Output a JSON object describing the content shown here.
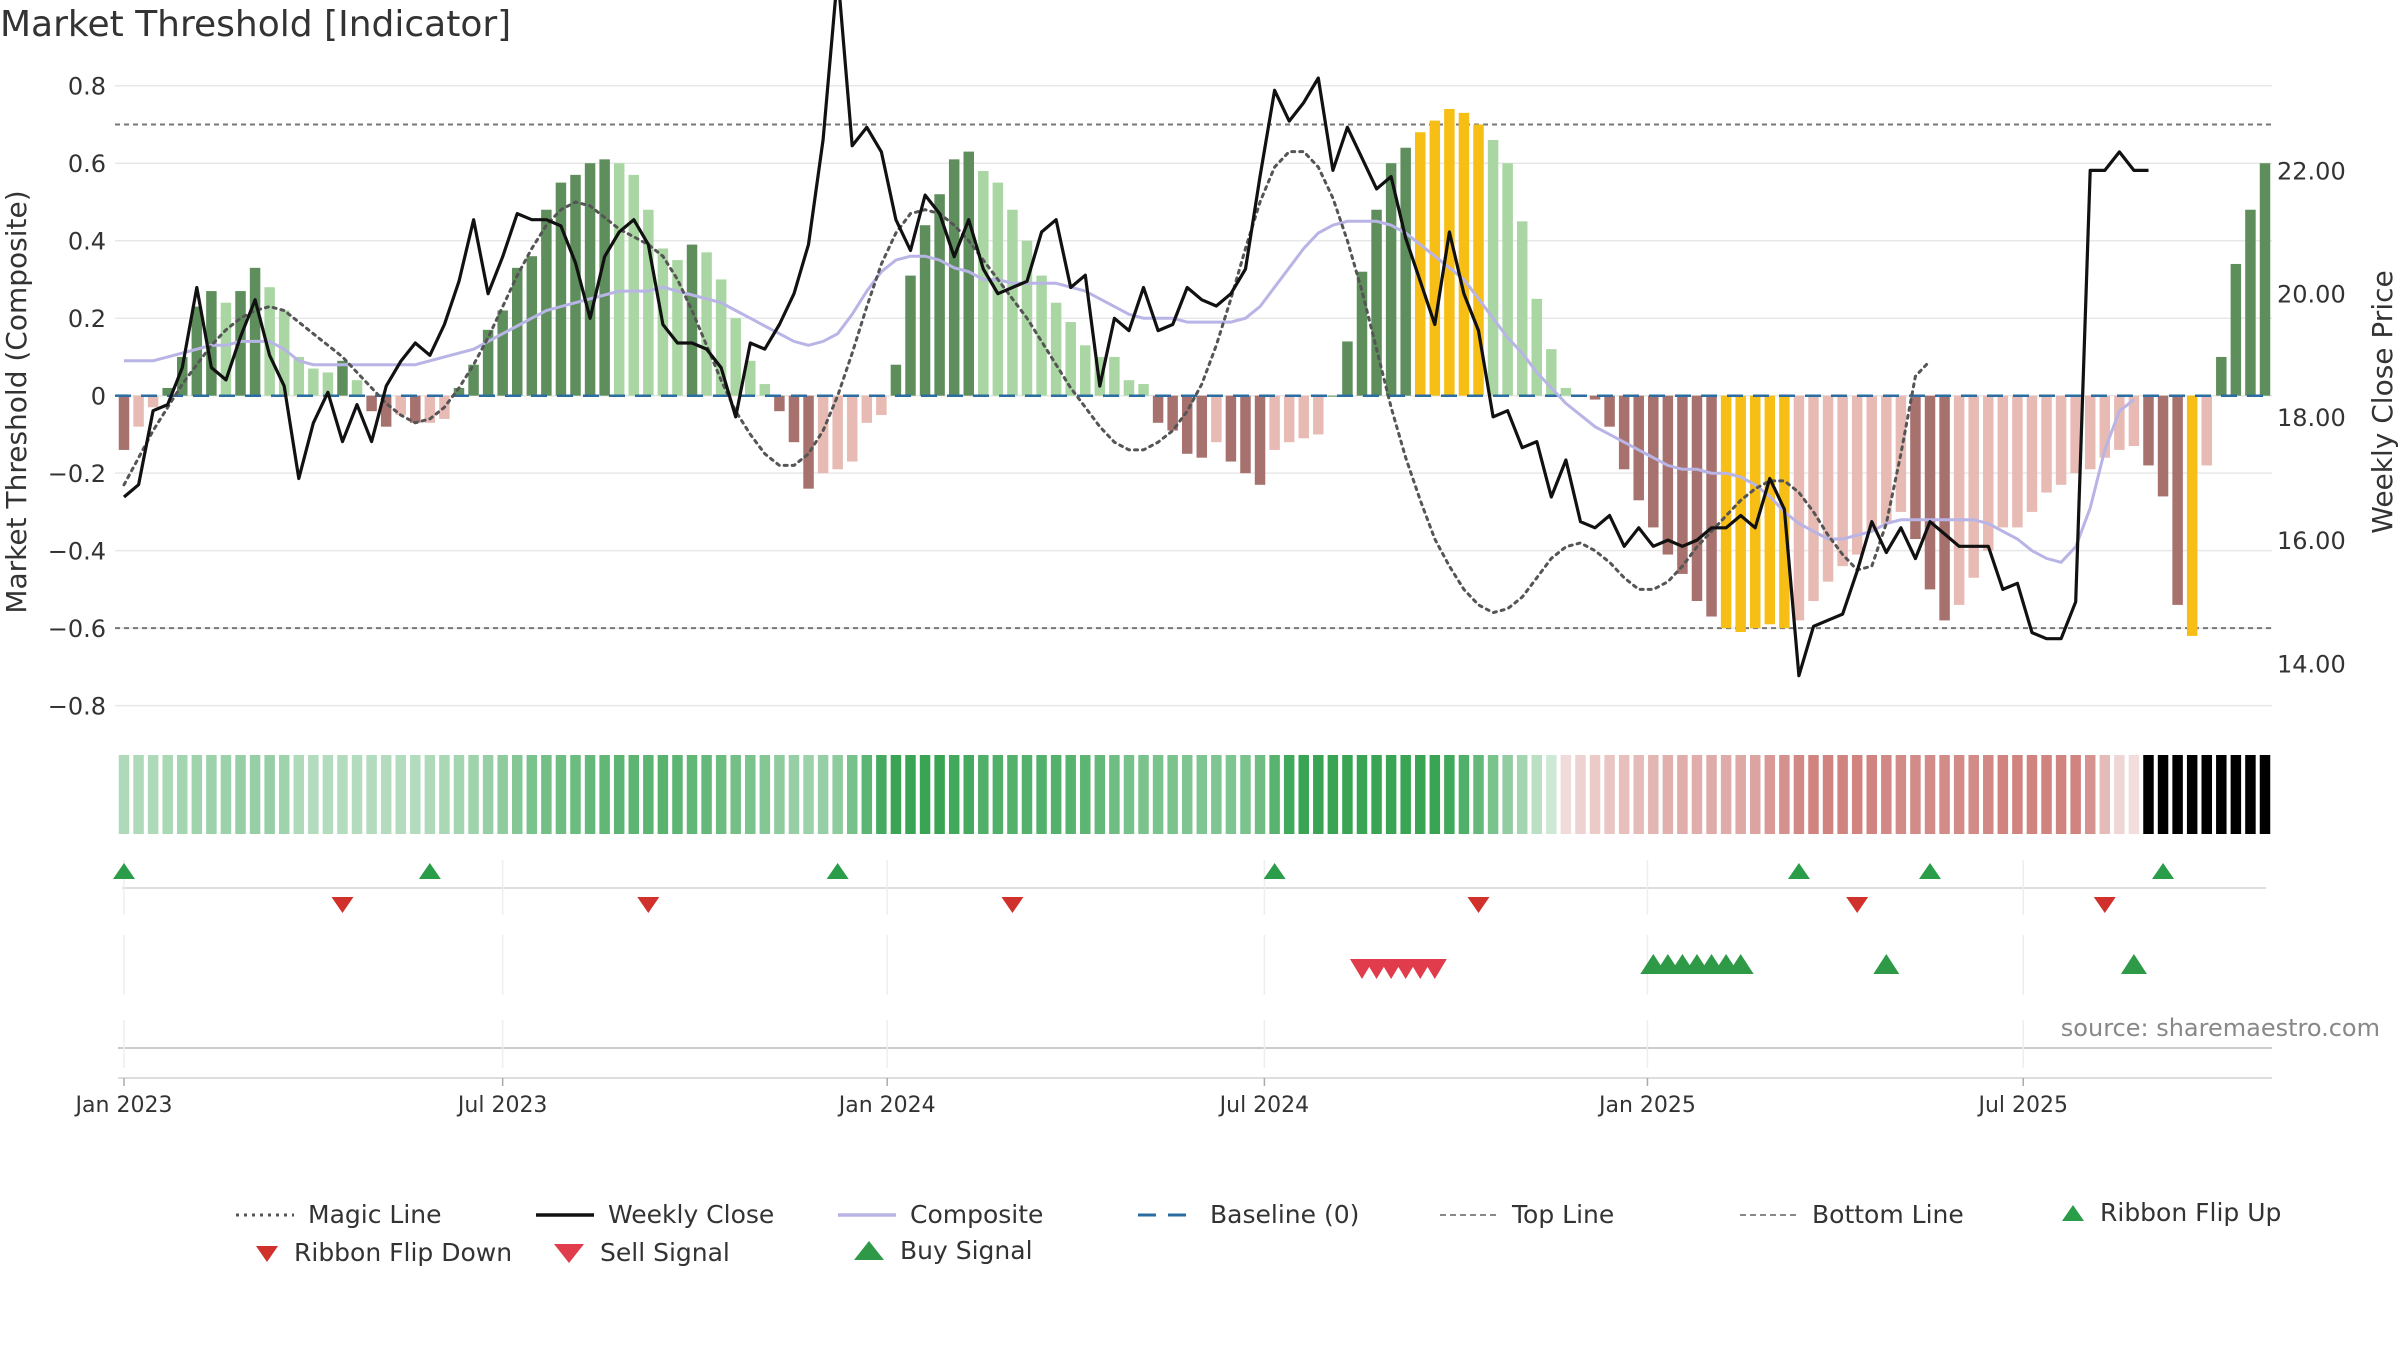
{
  "title": "Market Threshold [Indicator]",
  "source": "source: sharemaestro.com",
  "chart_data": {
    "type": "bar+line",
    "title": "Market Threshold [Indicator]",
    "ylabel": "Market Threshold (Composite)",
    "y2label": "Weekly Close Price",
    "ylim": [
      -0.85,
      0.82
    ],
    "y2lim": [
      13.0,
      23.5
    ],
    "yticks": [
      -0.8,
      -0.6,
      -0.4,
      -0.2,
      0,
      0.2,
      0.4,
      0.6,
      0.8
    ],
    "ytick_labels": [
      "−0.8",
      "−0.6",
      "−0.4",
      "−0.2",
      "0",
      "0.2",
      "0.4",
      "0.6",
      "0.8"
    ],
    "y2ticks": [
      14,
      16,
      18,
      20,
      22
    ],
    "y2tick_labels": [
      "14.00",
      "16.00",
      "18.00",
      "20.00",
      "22.00"
    ],
    "xticks": [
      {
        "label": "Jan 2023",
        "week": 0
      },
      {
        "label": "Jul 2023",
        "week": 26
      },
      {
        "label": "Jan 2024",
        "week": 52.4
      },
      {
        "label": "Jul 2024",
        "week": 78.3
      },
      {
        "label": "Jan 2025",
        "week": 104.6
      },
      {
        "label": "Jul 2025",
        "week": 130.4
      }
    ],
    "top_line": 0.7,
    "bottom_line": -0.6,
    "baseline": 0,
    "series": [
      {
        "name": "Magic Line",
        "axis": "left",
        "style": "dotted",
        "color": "#555555",
        "values": [
          -0.23,
          -0.16,
          -0.09,
          -0.03,
          0.03,
          0.08,
          0.13,
          0.17,
          0.2,
          0.22,
          0.23,
          0.22,
          0.19,
          0.16,
          0.13,
          0.1,
          0.06,
          0.02,
          -0.02,
          -0.05,
          -0.07,
          -0.06,
          -0.03,
          0.02,
          0.08,
          0.15,
          0.23,
          0.31,
          0.38,
          0.44,
          0.48,
          0.5,
          0.49,
          0.46,
          0.43,
          0.41,
          0.39,
          0.36,
          0.3,
          0.22,
          0.13,
          0.04,
          -0.04,
          -0.1,
          -0.15,
          -0.18,
          -0.18,
          -0.15,
          -0.09,
          0.0,
          0.11,
          0.23,
          0.34,
          0.42,
          0.47,
          0.48,
          0.47,
          0.44,
          0.4,
          0.35,
          0.3,
          0.25,
          0.2,
          0.14,
          0.08,
          0.02,
          -0.03,
          -0.08,
          -0.12,
          -0.14,
          -0.14,
          -0.12,
          -0.09,
          -0.04,
          0.03,
          0.13,
          0.25,
          0.38,
          0.5,
          0.59,
          0.63,
          0.63,
          0.59,
          0.51,
          0.4,
          0.27,
          0.12,
          -0.03,
          -0.16,
          -0.27,
          -0.37,
          -0.44,
          -0.5,
          -0.54,
          -0.56,
          -0.55,
          -0.52,
          -0.47,
          -0.42,
          -0.39,
          -0.38,
          -0.4,
          -0.43,
          -0.47,
          -0.5,
          -0.5,
          -0.48,
          -0.44,
          -0.39,
          -0.35,
          -0.31,
          -0.27,
          -0.24,
          -0.22,
          -0.22,
          -0.25,
          -0.3,
          -0.36,
          -0.41,
          -0.45,
          -0.44,
          -0.33,
          -0.15,
          0.05,
          0.09
        ]
      },
      {
        "name": "Weekly Close",
        "axis": "right",
        "style": "solid",
        "color": "#111111",
        "values": [
          16.7,
          16.9,
          18.1,
          18.2,
          18.8,
          20.1,
          18.8,
          18.6,
          19.3,
          19.9,
          19.0,
          18.5,
          17.0,
          17.9,
          18.4,
          17.6,
          18.2,
          17.6,
          18.5,
          18.9,
          19.2,
          19.0,
          19.5,
          20.2,
          21.2,
          20.0,
          20.6,
          21.3,
          21.2,
          21.2,
          21.1,
          20.5,
          19.6,
          20.6,
          21.0,
          21.2,
          20.8,
          19.5,
          19.2,
          19.2,
          19.1,
          18.8,
          18.0,
          19.2,
          19.1,
          19.5,
          20.0,
          20.8,
          22.5,
          25.2,
          22.4,
          22.7,
          22.3,
          21.2,
          20.7,
          21.6,
          21.3,
          20.6,
          21.2,
          20.4,
          20.0,
          20.1,
          20.2,
          21.0,
          21.2,
          20.1,
          20.3,
          18.5,
          19.6,
          19.4,
          20.1,
          19.4,
          19.5,
          20.1,
          19.9,
          19.8,
          20.0,
          20.4,
          21.9,
          23.3,
          22.8,
          23.1,
          23.5,
          22.0,
          22.7,
          22.2,
          21.7,
          21.9,
          20.9,
          20.2,
          19.5,
          21.0,
          20.0,
          19.4,
          18.0,
          18.1,
          17.5,
          17.6,
          16.7,
          17.3,
          16.3,
          16.2,
          16.4,
          15.9,
          16.2,
          15.9,
          16.0,
          15.9,
          16.0,
          16.2,
          16.2,
          16.4,
          16.2,
          17.0,
          16.5,
          13.8,
          14.6,
          14.7,
          14.8,
          15.5,
          16.3,
          15.8,
          16.2,
          15.7,
          16.3,
          16.1,
          15.9,
          15.9,
          15.9,
          15.2,
          15.3,
          14.5,
          14.4,
          14.4,
          15.0,
          22.0,
          22.0,
          22.3,
          22.0,
          22.0
        ]
      },
      {
        "name": "Composite",
        "axis": "left",
        "style": "solid",
        "color": "#b8b4e6",
        "values": [
          0.09,
          0.09,
          0.09,
          0.1,
          0.11,
          0.12,
          0.13,
          0.13,
          0.14,
          0.14,
          0.14,
          0.12,
          0.09,
          0.08,
          0.08,
          0.08,
          0.08,
          0.08,
          0.08,
          0.08,
          0.08,
          0.09,
          0.1,
          0.11,
          0.12,
          0.14,
          0.16,
          0.18,
          0.2,
          0.22,
          0.23,
          0.24,
          0.25,
          0.26,
          0.27,
          0.27,
          0.27,
          0.28,
          0.27,
          0.26,
          0.25,
          0.24,
          0.22,
          0.2,
          0.18,
          0.16,
          0.14,
          0.13,
          0.14,
          0.16,
          0.21,
          0.27,
          0.32,
          0.35,
          0.36,
          0.36,
          0.35,
          0.33,
          0.32,
          0.3,
          0.3,
          0.29,
          0.29,
          0.29,
          0.29,
          0.28,
          0.27,
          0.25,
          0.23,
          0.21,
          0.2,
          0.2,
          0.2,
          0.19,
          0.19,
          0.19,
          0.19,
          0.2,
          0.23,
          0.28,
          0.33,
          0.38,
          0.42,
          0.44,
          0.45,
          0.45,
          0.45,
          0.44,
          0.42,
          0.39,
          0.36,
          0.33,
          0.3,
          0.25,
          0.2,
          0.15,
          0.11,
          0.06,
          0.02,
          -0.02,
          -0.05,
          -0.08,
          -0.1,
          -0.12,
          -0.14,
          -0.16,
          -0.18,
          -0.19,
          -0.19,
          -0.2,
          -0.2,
          -0.21,
          -0.23,
          -0.26,
          -0.3,
          -0.33,
          -0.35,
          -0.37,
          -0.37,
          -0.36,
          -0.35,
          -0.33,
          -0.32,
          -0.32,
          -0.32,
          -0.32,
          -0.32,
          -0.32,
          -0.33,
          -0.35,
          -0.37,
          -0.4,
          -0.42,
          -0.43,
          -0.39,
          -0.29,
          -0.14,
          -0.04,
          -0.01
        ]
      },
      {
        "name": "Composite Bars",
        "axis": "left",
        "style": "bar",
        "values": [
          -0.14,
          -0.08,
          -0.03,
          0.02,
          0.1,
          0.23,
          0.27,
          0.24,
          0.27,
          0.33,
          0.28,
          0.22,
          0.1,
          0.07,
          0.06,
          0.09,
          0.04,
          -0.04,
          -0.08,
          -0.05,
          -0.07,
          -0.07,
          -0.06,
          0.02,
          0.08,
          0.17,
          0.22,
          0.33,
          0.36,
          0.48,
          0.55,
          0.57,
          0.6,
          0.61,
          0.6,
          0.57,
          0.48,
          0.38,
          0.35,
          0.39,
          0.37,
          0.3,
          0.2,
          0.09,
          0.03,
          -0.04,
          -0.12,
          -0.24,
          -0.2,
          -0.19,
          -0.17,
          -0.07,
          -0.05,
          0.08,
          0.31,
          0.44,
          0.52,
          0.61,
          0.63,
          0.58,
          0.55,
          0.48,
          0.4,
          0.31,
          0.24,
          0.19,
          0.13,
          0.1,
          0.1,
          0.04,
          0.03,
          -0.07,
          -0.09,
          -0.15,
          -0.16,
          -0.12,
          -0.17,
          -0.2,
          -0.23,
          -0.14,
          -0.12,
          -0.11,
          -0.1,
          0.0,
          0.14,
          0.32,
          0.48,
          0.6,
          0.64,
          0.68,
          0.71,
          0.74,
          0.73,
          0.7,
          0.66,
          0.6,
          0.45,
          0.25,
          0.12,
          0.02,
          0.0,
          -0.01,
          -0.08,
          -0.19,
          -0.27,
          -0.34,
          -0.41,
          -0.46,
          -0.53,
          -0.57,
          -0.6,
          -0.61,
          -0.6,
          -0.59,
          -0.6,
          -0.58,
          -0.53,
          -0.48,
          -0.44,
          -0.41,
          -0.35,
          -0.33,
          -0.3,
          -0.37,
          -0.5,
          -0.58,
          -0.54,
          -0.47,
          -0.4,
          -0.34,
          -0.34,
          -0.3,
          -0.25,
          -0.23,
          -0.2,
          -0.19,
          -0.16,
          -0.14,
          -0.13,
          -0.18,
          -0.26,
          -0.54,
          -0.62,
          -0.18,
          0.1,
          0.34,
          0.48,
          0.6
        ]
      },
      {
        "name": "Baseline (0)",
        "axis": "left",
        "style": "dashed",
        "color": "#2b6da0"
      },
      {
        "name": "Top Line",
        "axis": "left",
        "style": "dotted",
        "color": "#777777"
      },
      {
        "name": "Bottom Line",
        "axis": "left",
        "style": "dotted",
        "color": "#777777"
      }
    ],
    "ribbon_flip_up_weeks": [
      0,
      21,
      49,
      79,
      115,
      124,
      140
    ],
    "ribbon_flip_down_weeks": [
      15,
      36,
      61,
      93,
      119,
      136
    ],
    "buy_signal_weeks": [
      105,
      106,
      107,
      108,
      109,
      110,
      111,
      121,
      138
    ],
    "sell_signal_weeks": [
      85,
      86,
      87,
      88,
      89,
      90
    ],
    "legend": [
      "Magic Line",
      "Weekly Close",
      "Composite",
      "Baseline (0)",
      "Top Line",
      "Bottom Line",
      "Ribbon Flip Up",
      "Ribbon Flip Down",
      "Sell Signal",
      "Buy Signal"
    ]
  }
}
